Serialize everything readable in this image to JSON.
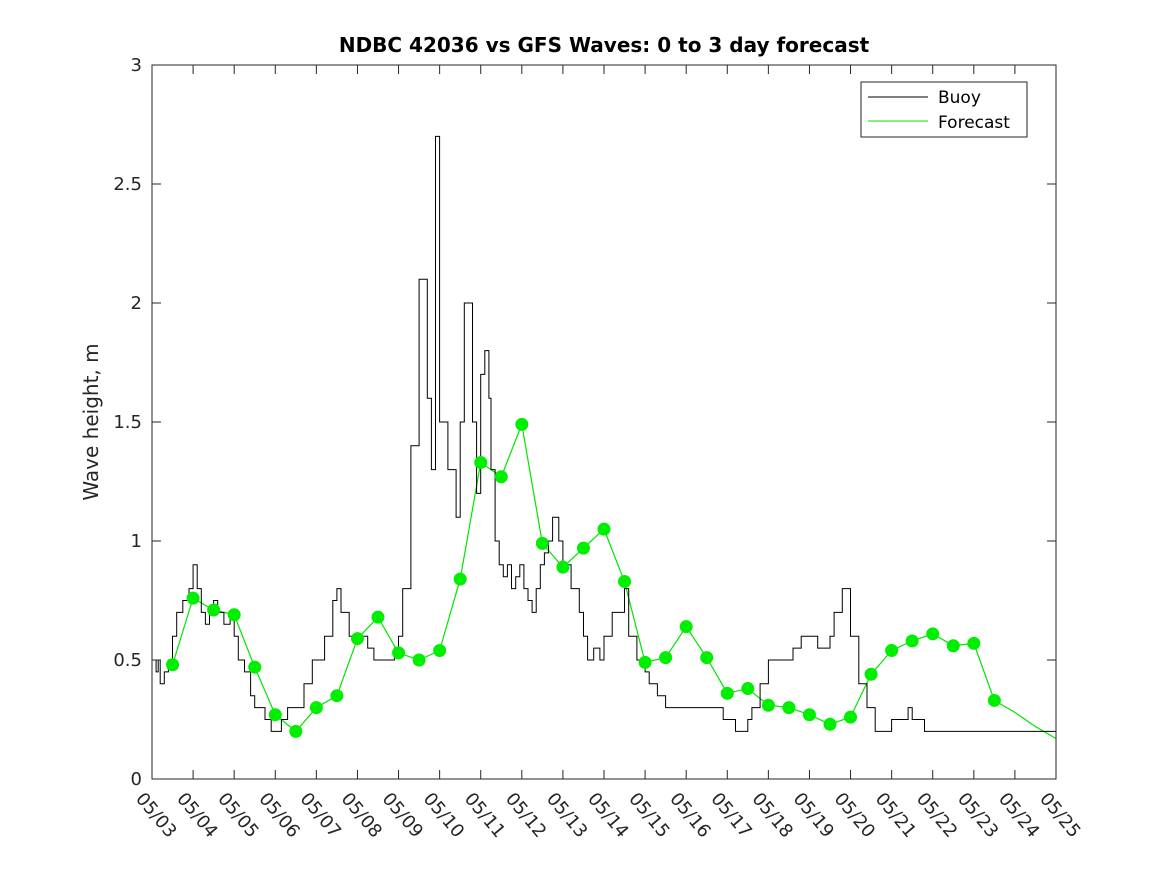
{
  "chart_data": {
    "type": "line",
    "title": "NDBC 42036 vs GFS Waves: 0 to 3 day forecast",
    "xlabel": "",
    "ylabel": "Wave height, m",
    "xlim": [
      "05/03",
      "05/25"
    ],
    "ylim": [
      0,
      3
    ],
    "x_tick_labels": [
      "05/03",
      "05/04",
      "05/05",
      "05/06",
      "05/07",
      "05/08",
      "05/09",
      "05/10",
      "05/11",
      "05/12",
      "05/13",
      "05/14",
      "05/15",
      "05/16",
      "05/17",
      "05/18",
      "05/19",
      "05/20",
      "05/21",
      "05/22",
      "05/23",
      "05/24",
      "05/25"
    ],
    "y_ticks": [
      0,
      0.5,
      1,
      1.5,
      2,
      2.5,
      3
    ],
    "y_tick_labels": [
      "0",
      "0.5",
      "1",
      "1.5",
      "2",
      "2.5",
      "3"
    ],
    "grid": false,
    "legend": {
      "position": "top-right",
      "entries": [
        "Buoy",
        "Forecast"
      ]
    },
    "colors": {
      "buoy": "#000000",
      "forecast": "#00e600",
      "markers": "#00ee00"
    },
    "series": [
      {
        "name": "Buoy",
        "x_days": [
          0,
          0.1,
          0.15,
          0.2,
          0.3,
          0.4,
          0.5,
          0.6,
          0.75,
          0.9,
          1.0,
          1.1,
          1.2,
          1.3,
          1.4,
          1.5,
          1.6,
          1.75,
          1.9,
          2.0,
          2.1,
          2.25,
          2.4,
          2.5,
          2.6,
          2.75,
          2.9,
          3.0,
          3.15,
          3.3,
          3.5,
          3.7,
          3.9,
          4.0,
          4.2,
          4.4,
          4.5,
          4.6,
          4.8,
          5.0,
          5.1,
          5.25,
          5.4,
          5.6,
          5.75,
          5.9,
          6.0,
          6.1,
          6.3,
          6.5,
          6.7,
          6.8,
          6.9,
          7.0,
          7.2,
          7.4,
          7.5,
          7.6,
          7.8,
          7.9,
          8.0,
          8.1,
          8.2,
          8.25,
          8.35,
          8.45,
          8.55,
          8.65,
          8.75,
          8.85,
          8.95,
          9.05,
          9.15,
          9.25,
          9.35,
          9.45,
          9.55,
          9.65,
          9.75,
          9.9,
          10.0,
          10.2,
          10.4,
          10.5,
          10.6,
          10.75,
          10.9,
          11.0,
          11.2,
          11.4,
          11.5,
          11.6,
          11.8,
          12.0,
          12.1,
          12.2,
          12.3,
          12.4,
          12.5,
          12.6,
          12.75,
          12.9,
          13.0,
          13.1,
          13.3,
          13.5,
          13.7,
          13.9,
          14.0,
          14.2,
          14.4,
          14.5,
          14.6,
          14.8,
          15.0,
          15.2,
          15.4,
          15.5,
          15.6,
          15.8,
          16.0,
          16.2,
          16.4,
          16.5,
          16.6,
          16.8,
          17.0,
          17.2,
          17.4,
          17.5,
          17.6,
          17.8,
          18.0,
          18.2,
          18.4,
          18.5,
          18.6,
          18.8,
          19.0,
          19.2,
          19.4,
          19.5,
          19.6,
          19.8,
          20.0,
          20.1,
          20.2,
          20.3,
          20.4,
          20.5,
          20.6,
          20.7,
          20.8,
          20.9,
          21.0,
          21.2,
          21.4,
          21.5,
          21.6,
          21.8,
          22.0
        ],
        "values": [
          0.5,
          0.45,
          0.5,
          0.4,
          0.45,
          0.5,
          0.6,
          0.7,
          0.75,
          0.8,
          0.9,
          0.8,
          0.7,
          0.65,
          0.7,
          0.75,
          0.7,
          0.65,
          0.7,
          0.6,
          0.5,
          0.45,
          0.35,
          0.3,
          0.3,
          0.25,
          0.2,
          0.2,
          0.25,
          0.3,
          0.3,
          0.4,
          0.5,
          0.5,
          0.6,
          0.75,
          0.8,
          0.7,
          0.6,
          0.6,
          0.6,
          0.55,
          0.5,
          0.5,
          0.5,
          0.55,
          0.6,
          0.8,
          1.4,
          2.1,
          1.6,
          1.3,
          2.7,
          1.5,
          1.3,
          1.1,
          1.5,
          2.0,
          1.5,
          1.2,
          1.7,
          1.8,
          1.6,
          1.3,
          1.0,
          0.9,
          0.85,
          0.9,
          0.8,
          0.85,
          0.9,
          0.8,
          0.75,
          0.7,
          0.8,
          0.9,
          0.95,
          1.0,
          1.1,
          1.0,
          0.9,
          0.8,
          0.7,
          0.6,
          0.5,
          0.55,
          0.5,
          0.6,
          0.7,
          0.7,
          0.8,
          0.6,
          0.5,
          0.45,
          0.4,
          0.4,
          0.35,
          0.35,
          0.3,
          0.3,
          0.3,
          0.3,
          0.3,
          0.3,
          0.3,
          0.3,
          0.3,
          0.25,
          0.25,
          0.2,
          0.2,
          0.25,
          0.3,
          0.4,
          0.5,
          0.5,
          0.5,
          0.5,
          0.55,
          0.6,
          0.6,
          0.55,
          0.55,
          0.6,
          0.7,
          0.8,
          0.6,
          0.4,
          0.3,
          0.3,
          0.2,
          0.2,
          0.25,
          0.25,
          0.3,
          0.25,
          0.25,
          0.2,
          0.2,
          0.2,
          0.2,
          0.2,
          0.2,
          0.2,
          0.2,
          0.2,
          0.2,
          0.2,
          0.2,
          0.2,
          0.2,
          0.2,
          0.2,
          0.2,
          0.2,
          0.2,
          0.2,
          0.2,
          0.2,
          0.2,
          0.2
        ]
      },
      {
        "name": "Forecast",
        "x_days": [
          0.5,
          1.0,
          1.5,
          2.0,
          2.5,
          3.0,
          3.5,
          4.0,
          4.5,
          5.0,
          5.5,
          6.0,
          6.5,
          7.0,
          7.5,
          8.0,
          8.5,
          9.0,
          9.5,
          10.0,
          10.5,
          11.0,
          11.5,
          12.0,
          12.5,
          13.0,
          13.5,
          14.0,
          14.5,
          15.0,
          15.5,
          16.0,
          16.5,
          17.0,
          17.5,
          18.0,
          18.5,
          19.0,
          19.5,
          20.0,
          20.5,
          21.0,
          21.5,
          22.0
        ],
        "values": [
          0.48,
          0.76,
          0.71,
          0.69,
          0.47,
          0.27,
          0.2,
          0.3,
          0.35,
          0.59,
          0.68,
          0.53,
          0.5,
          0.54,
          0.84,
          1.33,
          1.27,
          1.49,
          0.99,
          0.89,
          0.97,
          1.05,
          0.83,
          0.49,
          0.51,
          0.64,
          0.51,
          0.36,
          0.38,
          0.31,
          0.3,
          0.27,
          0.23,
          0.26,
          0.44,
          0.54,
          0.58,
          0.61,
          0.56,
          0.57,
          0.33,
          0.28,
          0.22,
          0.17
        ]
      }
    ],
    "forecast_markers": {
      "x_days": [
        0.5,
        1.0,
        1.5,
        2.0,
        2.5,
        3.0,
        3.5,
        4.0,
        4.5,
        5.0,
        5.5,
        6.0,
        6.5,
        7.0,
        7.5,
        8.0,
        8.5,
        9.0,
        9.5,
        10.0,
        10.5,
        11.0,
        11.5,
        12.0,
        12.5,
        13.0,
        13.5,
        14.0,
        14.5,
        15.0,
        15.5,
        16.0,
        16.5,
        17.0,
        17.5,
        18.0,
        18.5,
        19.0,
        19.5,
        20.0,
        20.5
      ],
      "values": [
        0.48,
        0.76,
        0.71,
        0.69,
        0.47,
        0.27,
        0.2,
        0.3,
        0.35,
        0.59,
        0.68,
        0.53,
        0.5,
        0.54,
        0.84,
        1.33,
        1.27,
        1.49,
        0.99,
        0.89,
        0.97,
        1.05,
        0.83,
        0.49,
        0.51,
        0.64,
        0.51,
        0.36,
        0.38,
        0.31,
        0.3,
        0.27,
        0.23,
        0.26,
        0.44,
        0.54,
        0.58,
        0.61,
        0.56,
        0.57,
        0.33
      ]
    }
  }
}
